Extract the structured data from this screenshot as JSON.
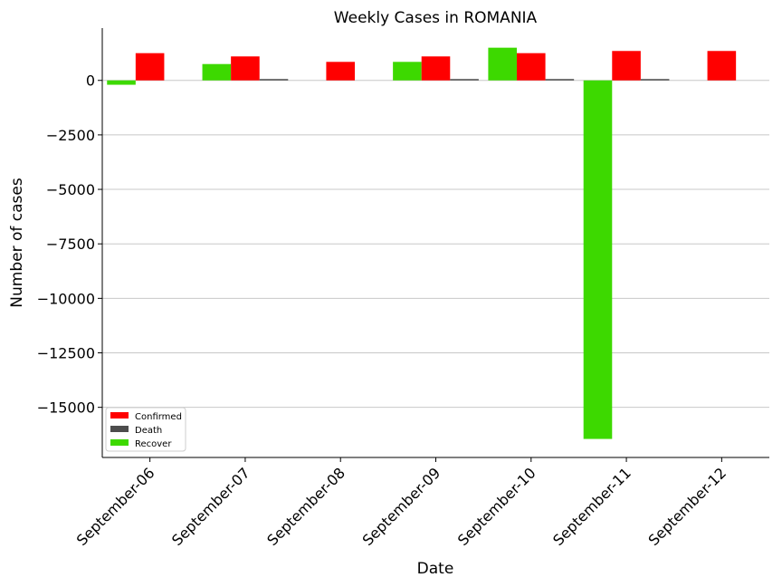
{
  "chart_data": {
    "type": "bar",
    "title": "Weekly Cases in ROMANIA",
    "xlabel": "Date",
    "ylabel": "Number of cases",
    "categories": [
      "September-06",
      "September-07",
      "September-08",
      "September-09",
      "September-10",
      "September-11",
      "September-12"
    ],
    "series": [
      {
        "name": "Recover",
        "color": "#3dd900",
        "values": [
          -200,
          750,
          null,
          850,
          1500,
          -16450,
          null
        ]
      },
      {
        "name": "Confirmed",
        "color": "#ff0000",
        "values": [
          1250,
          1100,
          850,
          1100,
          1250,
          1350,
          1350
        ]
      },
      {
        "name": "Death",
        "color": "#4d4d4d",
        "values": [
          null,
          40,
          null,
          40,
          40,
          40,
          null
        ]
      }
    ],
    "legend_order": [
      "Confirmed",
      "Death",
      "Recover"
    ],
    "yticks": [
      0,
      -2500,
      -5000,
      -7500,
      -10000,
      -12500,
      -15000
    ],
    "ytick_labels": [
      "0",
      "−2500",
      "−5000",
      "−7500",
      "−10000",
      "−12500",
      "−15000"
    ],
    "ylim": [
      -17300,
      2400
    ],
    "grid": "horizontal",
    "legend_position": "lower-left"
  }
}
